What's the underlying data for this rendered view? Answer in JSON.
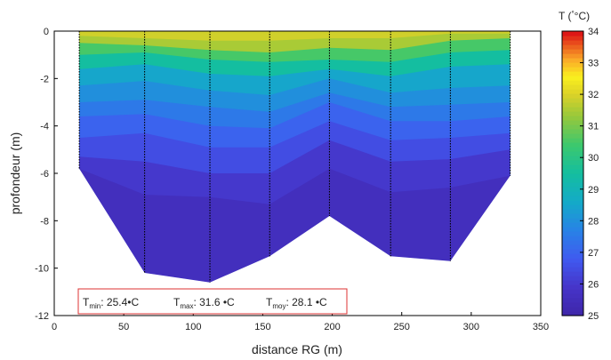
{
  "chart_data": {
    "type": "heatmap",
    "title": "",
    "xlabel": "distance RG (m)",
    "ylabel": "profondeur (m)",
    "xlim": [
      0,
      350
    ],
    "ylim": [
      -12,
      0
    ],
    "x_ticks": [
      "0",
      "50",
      "100",
      "150",
      "200",
      "250",
      "300",
      "350"
    ],
    "y_ticks": [
      "0",
      "-2",
      "-4",
      "-6",
      "-8",
      "-10",
      "-12"
    ],
    "profile_x": [
      18,
      65,
      112,
      155,
      198,
      242,
      285,
      328
    ],
    "bottom_depth": [
      -5.8,
      -10.2,
      -10.6,
      -9.5,
      -7.8,
      -9.5,
      -9.7,
      -6.1
    ],
    "temperature_layers": [
      {
        "temp": 31.5,
        "depth": [
          -0.2,
          -0.3,
          -0.4,
          -0.4,
          -0.3,
          -0.3,
          -0.1,
          -0.1
        ]
      },
      {
        "temp": 30.5,
        "depth": [
          -0.5,
          -0.6,
          -0.8,
          -0.9,
          -0.7,
          -0.8,
          -0.4,
          -0.3
        ]
      },
      {
        "temp": 29.5,
        "depth": [
          -1.0,
          -0.9,
          -1.2,
          -1.3,
          -1.2,
          -1.3,
          -0.9,
          -0.8
        ]
      },
      {
        "temp": 28.5,
        "depth": [
          -1.6,
          -1.4,
          -1.8,
          -1.9,
          -1.6,
          -1.9,
          -1.5,
          -1.4
        ]
      },
      {
        "temp": 28.0,
        "depth": [
          -2.3,
          -2.1,
          -2.5,
          -2.7,
          -2.0,
          -2.6,
          -2.4,
          -2.3
        ]
      },
      {
        "temp": 27.5,
        "depth": [
          -3.0,
          -2.9,
          -3.2,
          -3.4,
          -2.6,
          -3.2,
          -3.1,
          -3.0
        ]
      },
      {
        "temp": 27.0,
        "depth": [
          -3.6,
          -3.5,
          -4.0,
          -4.1,
          -3.0,
          -3.8,
          -3.8,
          -3.6
        ]
      },
      {
        "temp": 26.5,
        "depth": [
          -4.5,
          -4.3,
          -4.9,
          -4.9,
          -3.8,
          -4.6,
          -4.5,
          -4.3
        ]
      },
      {
        "temp": 26.0,
        "depth": [
          -5.3,
          -5.5,
          -6.0,
          -6.0,
          -4.6,
          -5.5,
          -5.4,
          -5.0
        ]
      },
      {
        "temp": 25.6,
        "depth": [
          -5.8,
          -6.9,
          -7.0,
          -7.3,
          -5.8,
          -6.8,
          -6.6,
          -6.1
        ]
      }
    ],
    "colorbar": {
      "label_prefix": "T (",
      "label_unit": "°C)",
      "min": 25,
      "max": 34,
      "ticks": [
        "25",
        "26",
        "27",
        "28",
        "29",
        "30",
        "31",
        "32",
        "33",
        "34"
      ]
    },
    "stats": {
      "T": "T",
      "min_sub": "min",
      "min_value": ": 25.4•C",
      "max_sub": "max",
      "max_value": ": 31.6 •C",
      "moy_sub": "moy",
      "moy_value": ": 28.1 •C"
    }
  }
}
